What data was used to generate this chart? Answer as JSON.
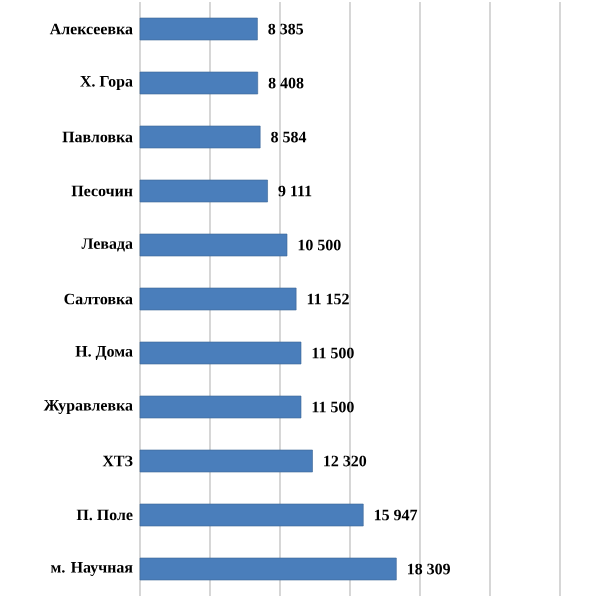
{
  "chart_data": {
    "type": "bar",
    "orientation": "horizontal",
    "categories": [
      "Алексеевка",
      "Х. Гора",
      "Павловка",
      "Песочин",
      "Левада",
      "Салтовка",
      "Н. Дома",
      "Журавлевка",
      "ХТЗ",
      "П. Поле",
      "м. Научная"
    ],
    "values": [
      8385,
      8408,
      8584,
      9111,
      10500,
      11152,
      11500,
      11500,
      12320,
      15947,
      18309
    ],
    "value_labels": [
      "8 385",
      "8 408",
      "8 584",
      "9 111",
      "10 500",
      "11 152",
      "11 500",
      "11 500",
      "12 320",
      "15 947",
      "18 309"
    ],
    "color": "#4a7ebb",
    "xlim": [
      0,
      30000
    ],
    "xticks": [
      {
        "value": 0,
        "label": null
      },
      {
        "value": 5000,
        "label": null
      },
      {
        "value": 10000,
        "label": null
      },
      {
        "value": 15000,
        "label": null
      },
      {
        "value": 20000,
        "label": null
      },
      {
        "value": 25000,
        "label": null
      },
      {
        "value": 30000,
        "label": null
      }
    ],
    "tick_labels": "y",
    "grid": "x"
  }
}
